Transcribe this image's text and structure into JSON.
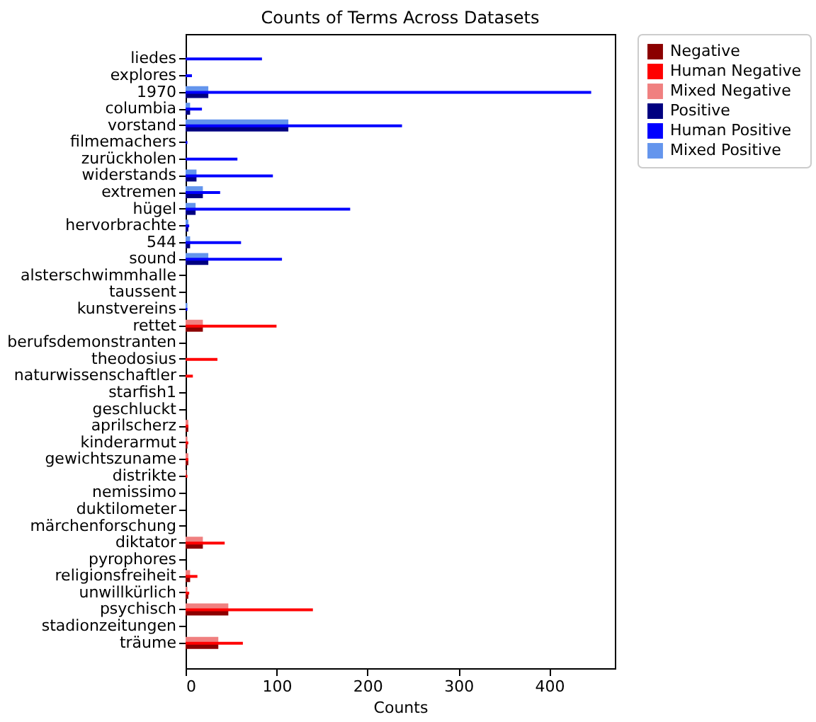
{
  "chart_data": {
    "type": "bar",
    "orientation": "horizontal",
    "title": "Counts of Terms Across Datasets",
    "xlabel": "Counts",
    "categories": [
      "liedes",
      "explores",
      "1970",
      "columbia",
      "vorstand",
      "filmemachers",
      "zurückholen",
      "widerstands",
      "extremen",
      "hügel",
      "hervorbrachte",
      "544",
      "sound",
      "alsterschwimmhalle",
      "taussent",
      "kunstvereins",
      "rettet",
      "berufsdemonstranten",
      "theodosius",
      "naturwissenschaftler",
      "starfish1",
      "geschluckt",
      "aprilscherz",
      "kinderarmut",
      "gewichtszuname",
      "distrikte",
      "nemissimo",
      "duktilometer",
      "märchenforschung",
      "diktator",
      "pyrophores",
      "religionsfreiheit",
      "unwillkürlich",
      "psychisch",
      "stadionzeitungen",
      "träume"
    ],
    "series": [
      {
        "name": "Negative",
        "color": "#8b0000",
        "values": [
          null,
          null,
          null,
          null,
          null,
          null,
          null,
          null,
          null,
          null,
          null,
          null,
          null,
          null,
          null,
          null,
          19,
          0,
          0,
          0,
          0,
          0,
          3,
          2,
          3,
          0,
          0,
          0,
          0,
          19,
          0,
          5,
          3,
          47,
          0,
          36
        ]
      },
      {
        "name": "Human Negative",
        "color": "#ff0000",
        "values": [
          null,
          null,
          null,
          null,
          null,
          null,
          null,
          null,
          null,
          null,
          null,
          null,
          null,
          null,
          null,
          null,
          100,
          0,
          35,
          8,
          0,
          0,
          3,
          3,
          3,
          2,
          0,
          0,
          0,
          43,
          0,
          13,
          4,
          140,
          0,
          63
        ]
      },
      {
        "name": "Mixed Negative",
        "color": "#f08080",
        "values": [
          null,
          null,
          null,
          null,
          null,
          null,
          null,
          null,
          null,
          null,
          null,
          null,
          null,
          null,
          null,
          null,
          19,
          0,
          0,
          0,
          0,
          0,
          3,
          2,
          3,
          1,
          0,
          0,
          0,
          19,
          0,
          5,
          2,
          47,
          0,
          36
        ]
      },
      {
        "name": "Positive",
        "color": "#000080",
        "values": [
          0,
          0,
          25,
          5,
          113,
          0,
          0,
          12,
          19,
          11,
          3,
          5,
          25,
          0,
          0,
          0,
          null,
          null,
          null,
          null,
          null,
          null,
          null,
          null,
          null,
          null,
          null,
          null,
          null,
          null,
          null,
          null,
          null,
          null,
          null,
          null
        ]
      },
      {
        "name": "Human Positive",
        "color": "#0000ff",
        "values": [
          84,
          7,
          446,
          18,
          238,
          2,
          57,
          96,
          38,
          181,
          4,
          61,
          106,
          0,
          0,
          2,
          null,
          null,
          null,
          null,
          null,
          null,
          null,
          null,
          null,
          null,
          null,
          null,
          null,
          null,
          null,
          null,
          null,
          null,
          null,
          null
        ]
      },
      {
        "name": "Mixed Positive",
        "color": "#6495ed",
        "values": [
          0,
          0,
          25,
          5,
          113,
          0,
          0,
          12,
          19,
          11,
          3,
          5,
          25,
          0,
          0,
          2,
          null,
          null,
          null,
          null,
          null,
          null,
          null,
          null,
          null,
          null,
          null,
          null,
          null,
          null,
          null,
          null,
          null,
          null,
          null,
          null
        ]
      }
    ],
    "xlim": [
      0,
      472
    ],
    "xticks": [
      0,
      100,
      200,
      300,
      400
    ],
    "grid": false,
    "legend": "right"
  }
}
